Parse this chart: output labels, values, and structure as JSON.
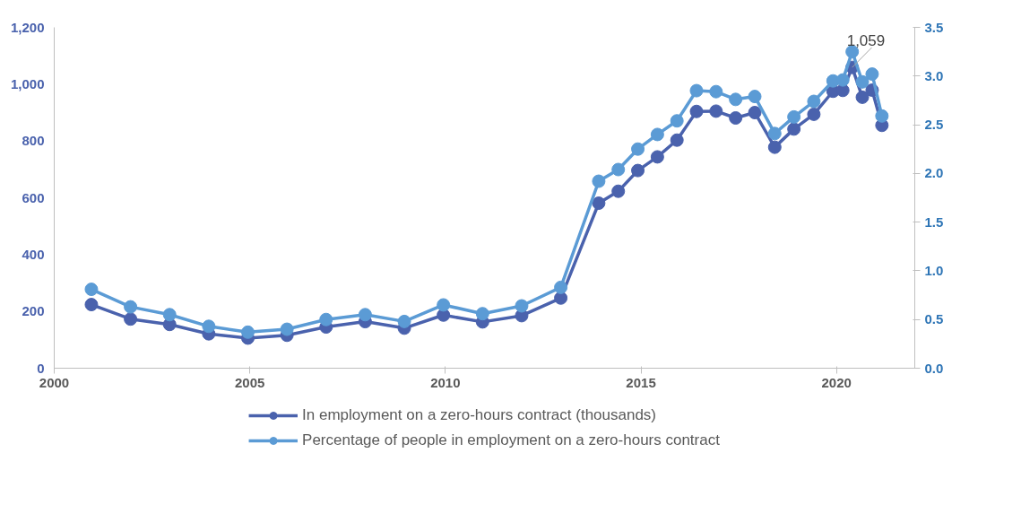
{
  "chart_data": {
    "type": "line",
    "x": [
      2000.95,
      2001.95,
      2002.95,
      2003.95,
      2004.95,
      2005.95,
      2006.95,
      2007.95,
      2008.95,
      2009.95,
      2010.95,
      2011.95,
      2012.95,
      2013.92,
      2014.42,
      2014.92,
      2015.42,
      2015.92,
      2016.42,
      2016.92,
      2017.42,
      2017.91,
      2018.42,
      2018.91,
      2019.42,
      2019.91,
      2020.16,
      2020.4,
      2020.66,
      2020.91,
      2021.16
    ],
    "series": [
      {
        "name": "In employment on a zero-hours contract (thousands)",
        "color": "#4a62ad",
        "values": [
          224,
          173,
          154,
          121,
          106,
          116,
          145,
          164,
          141,
          187,
          163,
          185,
          247,
          581,
          623,
          696,
          744,
          803,
          904,
          905,
          881,
          900,
          778,
          842,
          894,
          975,
          978,
          1059,
          954,
          979,
          855
        ]
      },
      {
        "name": "Percentage of people in employment on a zero-hours contract",
        "color": "#5b9bd5",
        "axis": "y2",
        "values": [
          0.81,
          0.63,
          0.55,
          0.43,
          0.37,
          0.4,
          0.5,
          0.55,
          0.48,
          0.65,
          0.56,
          0.64,
          0.83,
          1.92,
          2.04,
          2.25,
          2.4,
          2.54,
          2.85,
          2.84,
          2.76,
          2.79,
          2.41,
          2.58,
          2.74,
          2.95,
          2.96,
          3.25,
          2.94,
          3.02,
          2.59
        ]
      }
    ],
    "xlim": [
      2000,
      2022
    ],
    "xticks": [
      2000,
      2005,
      2010,
      2015,
      2020
    ],
    "ylim": [
      0,
      1200
    ],
    "yticks": [
      0,
      200,
      400,
      600,
      800,
      {
        "value": 1000,
        "label": "1,000"
      },
      {
        "value": 1200,
        "label": "1,200"
      }
    ],
    "y2lim": [
      0,
      3.5
    ],
    "y2ticks": [
      {
        "value": 0,
        "label": "0.0"
      },
      0.5,
      {
        "value": 1,
        "label": "1.0"
      },
      1.5,
      {
        "value": 2,
        "label": "2.0"
      },
      2.5,
      {
        "value": 3,
        "label": "3.0"
      },
      3.5
    ],
    "annotations": [
      {
        "text": "1,059",
        "x": 2020.4,
        "y": 1059
      }
    ],
    "marker": "circle",
    "line_style": "solid",
    "grid": false,
    "legend": "bottom"
  }
}
